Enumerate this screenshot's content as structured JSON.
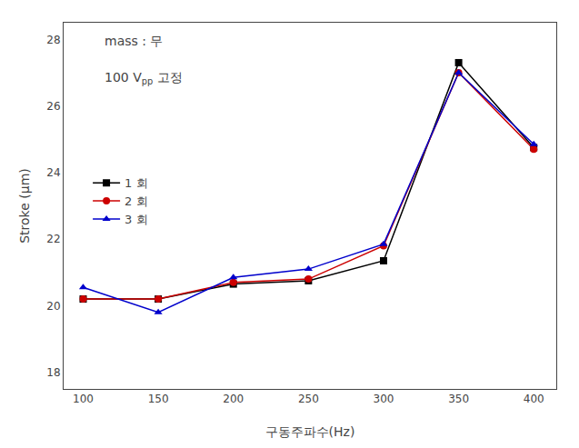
{
  "chart_data": {
    "type": "line",
    "x": [
      100,
      150,
      200,
      250,
      300,
      350,
      400
    ],
    "series": [
      {
        "name": "1 회",
        "color": "#000000",
        "marker": "square",
        "values": [
          20.2,
          20.2,
          20.65,
          20.75,
          21.35,
          27.3,
          24.75
        ]
      },
      {
        "name": "2 회",
        "color": "#cc0000",
        "marker": "circle",
        "values": [
          20.2,
          20.2,
          20.7,
          20.8,
          21.8,
          27.0,
          24.7
        ]
      },
      {
        "name": "3 회",
        "color": "#0000cc",
        "marker": "triangle-up",
        "values": [
          20.55,
          19.8,
          20.85,
          21.1,
          21.85,
          27.0,
          24.85
        ]
      }
    ],
    "x_label": "구동주파수(Hz)",
    "y_label": "Stroke (μm)",
    "xlim": [
      87,
      415
    ],
    "ylim": [
      17.5,
      28.5
    ],
    "xticks": [
      100,
      150,
      200,
      250,
      300,
      350,
      400
    ],
    "yticks": [
      18,
      20,
      22,
      24,
      26,
      28
    ],
    "annotations": [
      {
        "text": "mass : 무"
      },
      {
        "text": "100 V",
        "subscript": "pp",
        "after": "고정"
      }
    ],
    "grid": false,
    "legend": "upper left"
  }
}
